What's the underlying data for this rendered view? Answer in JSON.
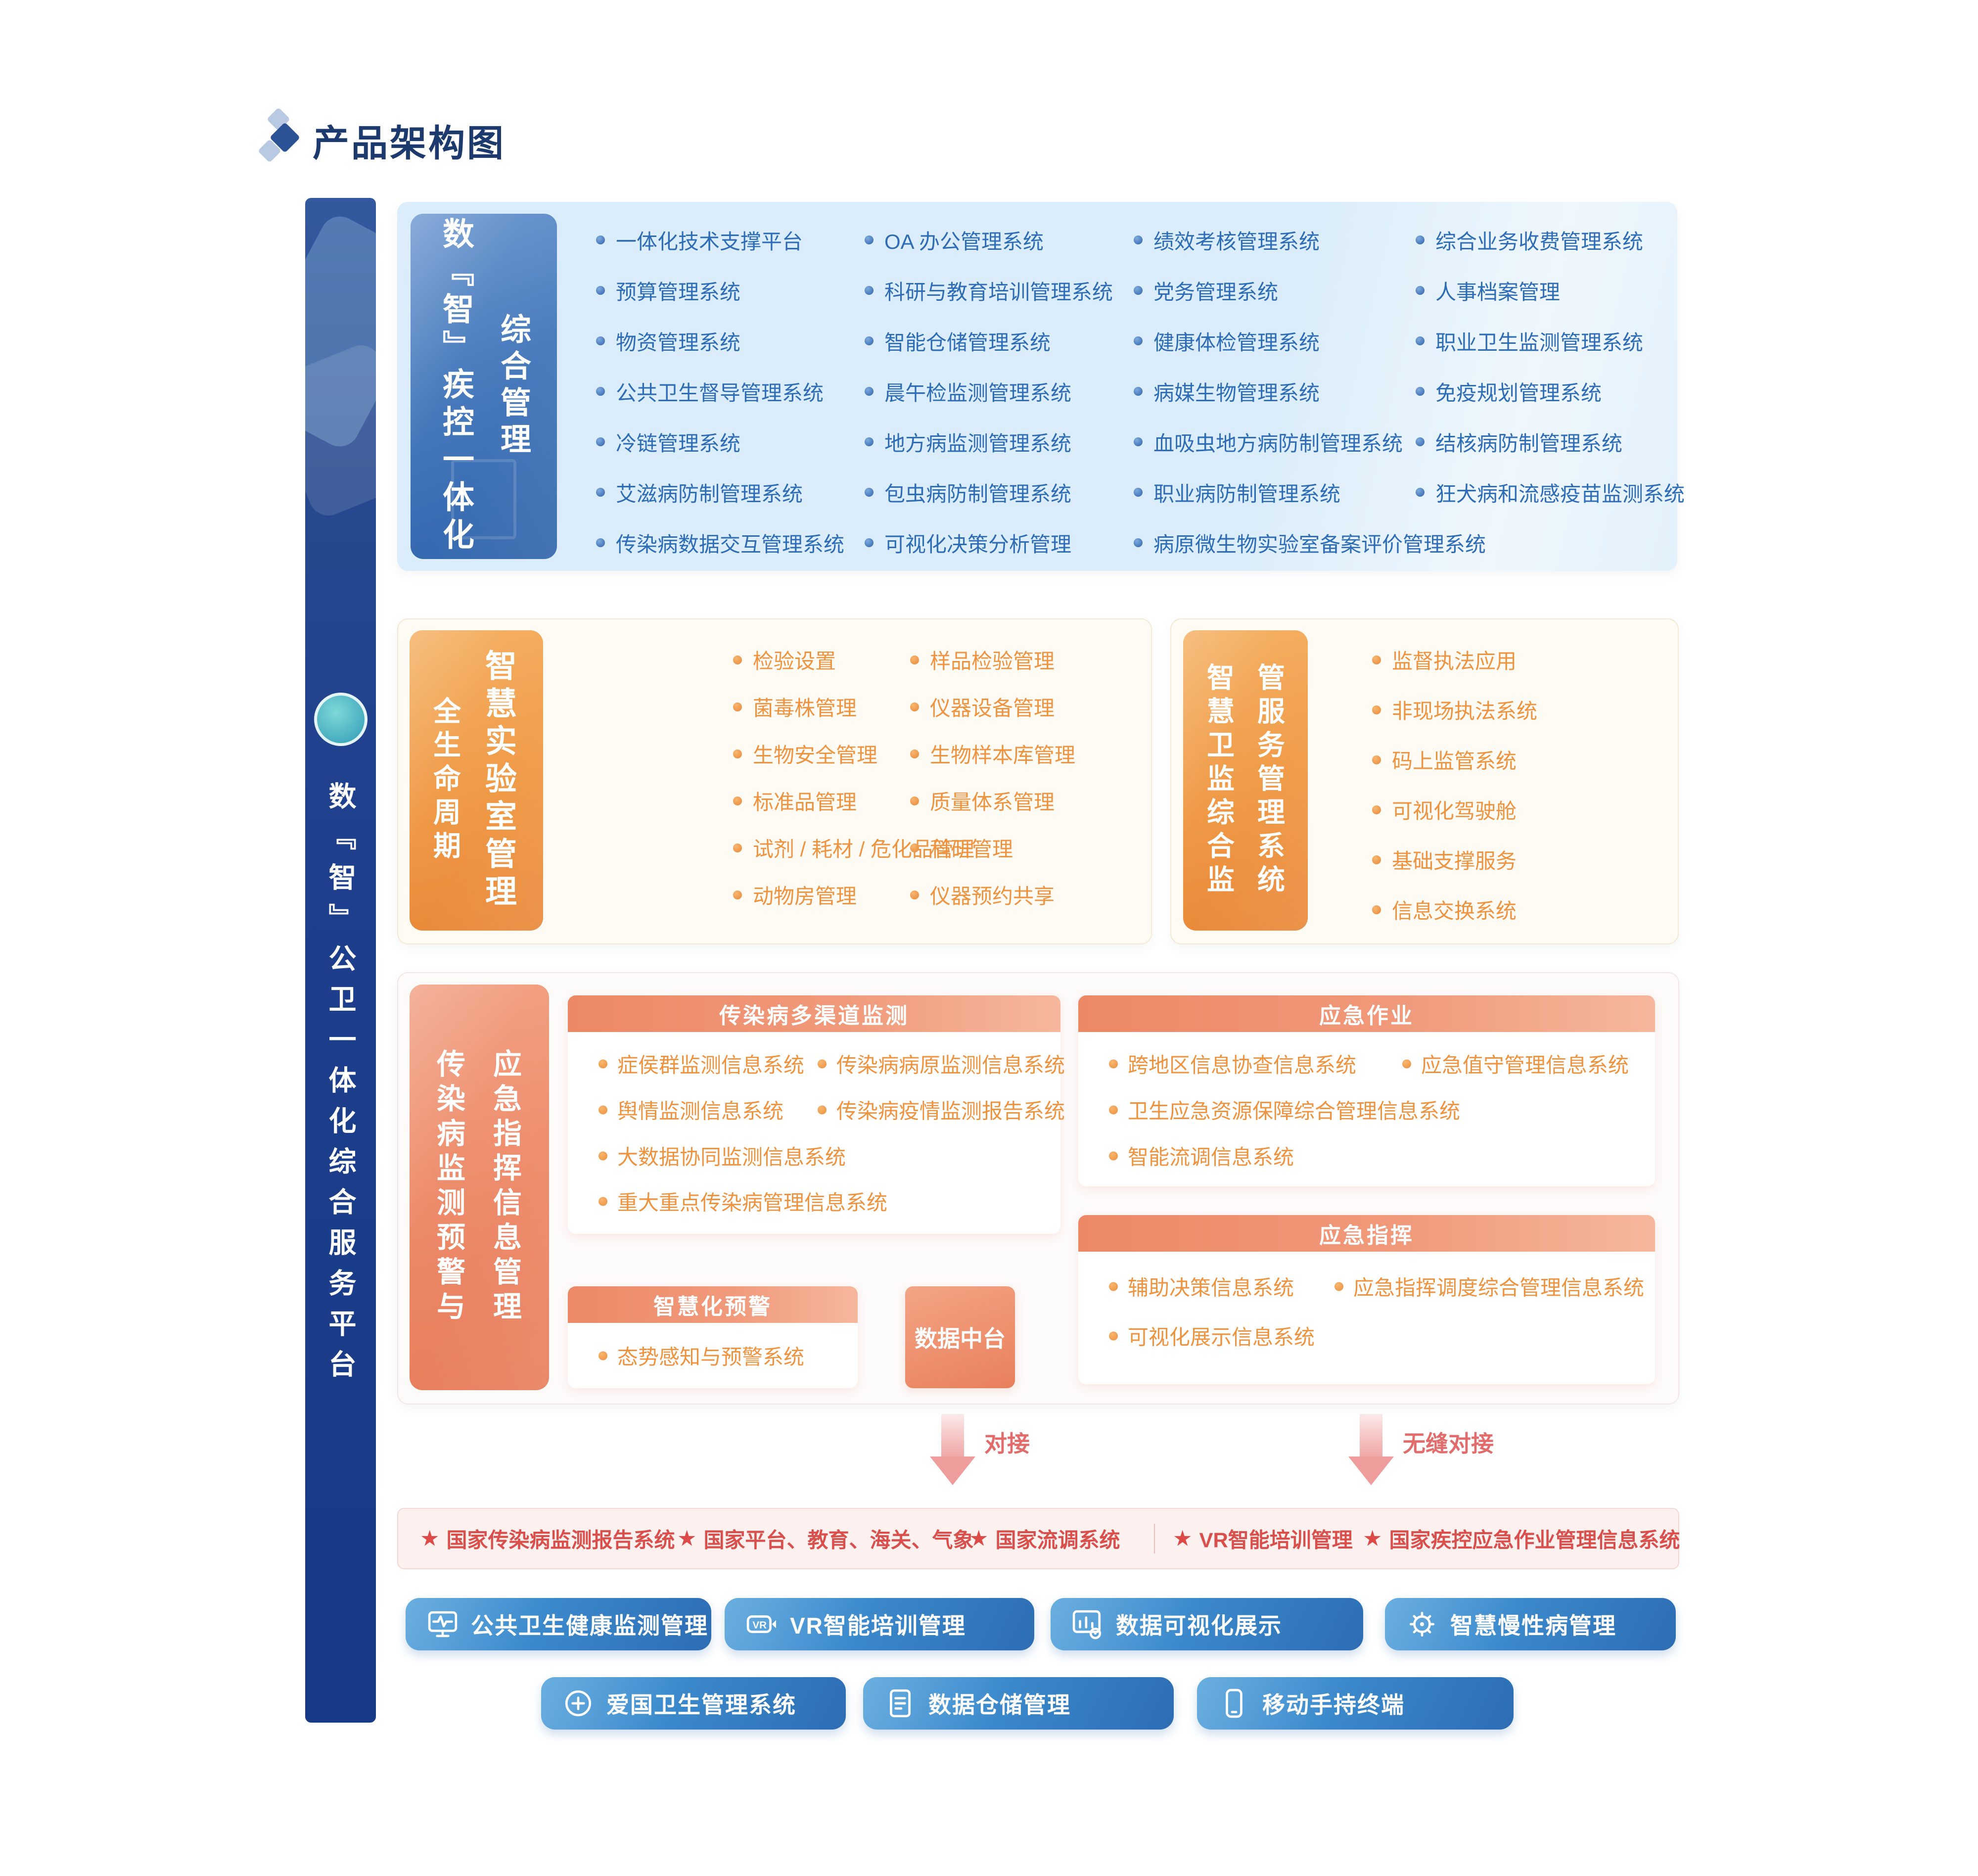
{
  "title": {
    "text": "产品架构图"
  },
  "sidebar": {
    "label": "数『智』公卫一体化综合服务平台"
  },
  "colors": {
    "primary_blue": "#2e6cb5",
    "deep_blue": "#1d3f8d",
    "light_blue_bg": "#dbedfa",
    "orange": "#ee9440",
    "salmon": "#ec8866",
    "red": "#dc4b48",
    "button_blue": "#2d6db4"
  },
  "cdc": {
    "label_main": "数『智』疾控一体化",
    "label_sub": "综合管理",
    "col1": [
      "一体化技术支撑平台",
      "预算管理系统",
      "物资管理系统",
      "公共卫生督导管理系统",
      "冷链管理系统",
      "艾滋病防制管理系统",
      "传染病数据交互管理系统"
    ],
    "col2": [
      "OA 办公管理系统",
      "科研与教育培训管理系统",
      "智能仓储管理系统",
      "晨午检监测管理系统",
      "地方病监测管理系统",
      "包虫病防制管理系统",
      "可视化决策分析管理"
    ],
    "col3": [
      "绩效考核管理系统",
      "党务管理系统",
      "健康体检管理系统",
      "病媒生物管理系统",
      "血吸虫地方病防制管理系统",
      "职业病防制管理系统",
      "病原微生物实验室备案评价管理系统"
    ],
    "col4": [
      "综合业务收费管理系统",
      "人事档案管理",
      "职业卫生监测管理系统",
      "免疫规划管理系统",
      "结核病防制管理系统",
      "狂犬病和流感疫苗监测系统"
    ]
  },
  "lab": {
    "label_side": "全生命周期",
    "label_main": "智慧实验室管理",
    "col1": [
      "检验设置",
      "菌毒株管理",
      "生物安全管理",
      "标准品管理",
      "试剂 / 耗材 / 危化品管理",
      "动物房管理"
    ],
    "col2": [
      "样品检验管理",
      "仪器设备管理",
      "生物样本库管理",
      "质量体系管理",
      "科研管理",
      "仪器预约共享"
    ]
  },
  "supervision": {
    "label_col1": "智慧卫监综合监",
    "label_col2": "管服务管理系统",
    "items": [
      "监督执法应用",
      "非现场执法系统",
      "码上监管系统",
      "可视化驾驶舱",
      "基础支撑服务",
      "信息交换系统"
    ]
  },
  "infect": {
    "label_col1": "传染病监测预警与",
    "label_col2": "应急指挥信息管理",
    "multi": {
      "title": "传染病多渠道监测",
      "items": [
        "症侯群监测信息系统",
        "传染病病原监测信息系统",
        "舆情监测信息系统",
        "传染病疫情监测报告系统",
        "大数据协同监测信息系统",
        "重大重点传染病管理信息系统"
      ]
    },
    "warning": {
      "title": "智慧化预警",
      "items": [
        "态势感知与预警系统"
      ]
    },
    "data_center": {
      "title": "数据中台"
    },
    "ops": {
      "title": "应急作业",
      "items": [
        "跨地区信息协查信息系统",
        "应急值守管理信息系统",
        "卫生应急资源保障综合管理信息系统",
        "智能流调信息系统"
      ]
    },
    "cmd": {
      "title": "应急指挥",
      "items": [
        "辅助决策信息系统",
        "应急指挥调度综合管理信息系统",
        "可视化展示信息系统"
      ]
    }
  },
  "arrows": {
    "left": "对接",
    "right": "无缝对接"
  },
  "national": {
    "items": [
      "国家传染病监测报告系统",
      "国家平台、教育、海关、气象",
      "国家流调系统",
      "VR智能培训管理",
      "国家疾控应急作业管理信息系统"
    ]
  },
  "apps_row1": [
    {
      "icon": "monitor-pulse-icon",
      "label": "公共卫生健康监测管理"
    },
    {
      "icon": "vr-goggles-icon",
      "label": "VR智能培训管理"
    },
    {
      "icon": "chart-eye-icon",
      "label": "数据可视化展示"
    },
    {
      "icon": "gear-icon",
      "label": "智慧慢性病管理"
    }
  ],
  "apps_row2": [
    {
      "icon": "plus-circle-icon",
      "label": "爱国卫生管理系统"
    },
    {
      "icon": "document-icon",
      "label": "数据仓储管理"
    },
    {
      "icon": "smartphone-icon",
      "label": "移动手持终端"
    }
  ]
}
